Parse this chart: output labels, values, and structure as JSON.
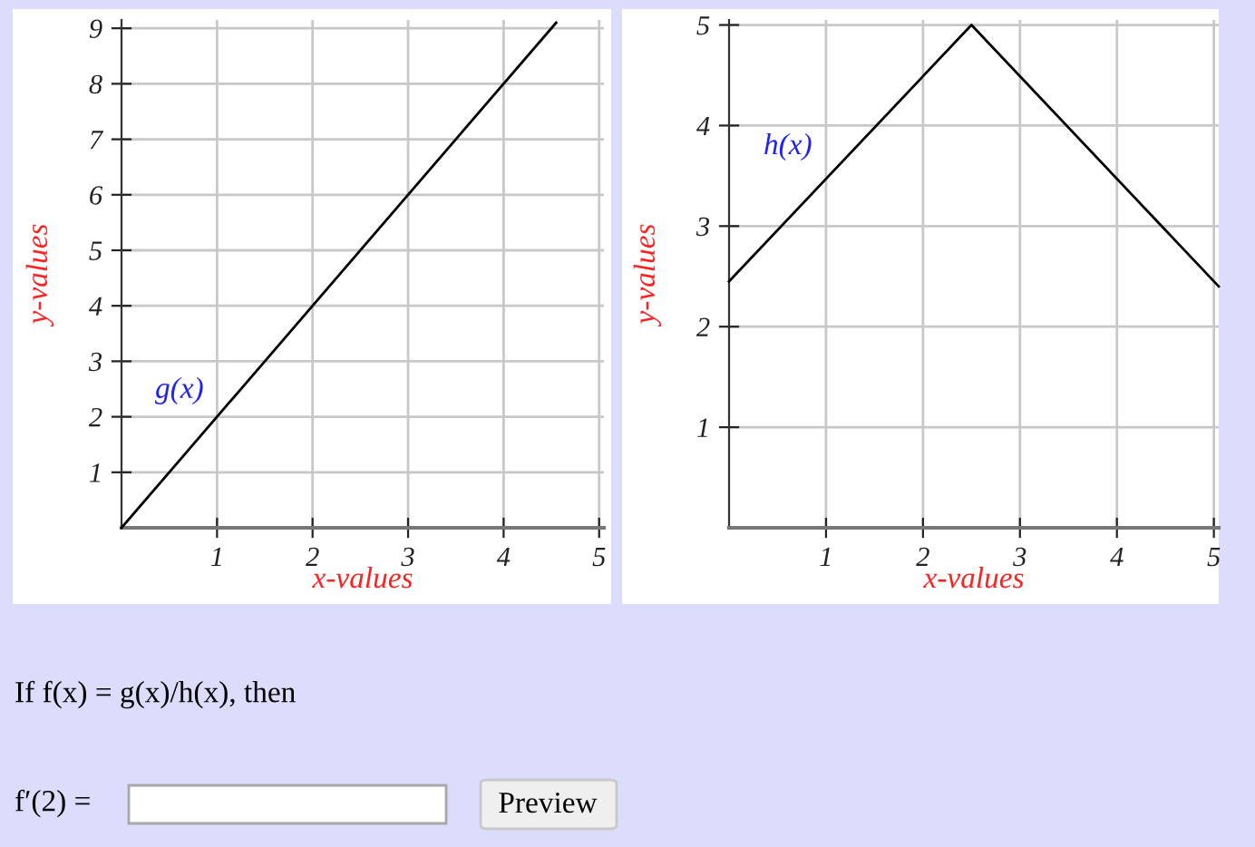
{
  "chart_data": [
    {
      "type": "line",
      "xlabel": "x-values",
      "ylabel": "y-values",
      "x": [
        0,
        4.55
      ],
      "series": [
        {
          "color": "#000000",
          "values": [
            0,
            9.1
          ]
        }
      ],
      "annotations": [
        "g(x)"
      ],
      "xlim": [
        0,
        5.05
      ],
      "ylim": [
        0,
        9.15
      ],
      "xticks": [
        1,
        2,
        3,
        4,
        5
      ],
      "yticks": [
        1,
        2,
        3,
        4,
        5,
        6,
        7,
        8,
        9
      ],
      "grid": true
    },
    {
      "type": "line",
      "xlabel": "x-values",
      "ylabel": "y-values",
      "x": [
        0,
        2.5,
        5.05
      ],
      "series": [
        {
          "color": "#000000",
          "values": [
            2.45,
            5,
            2.4
          ]
        }
      ],
      "annotations": [
        "h(x)"
      ],
      "xlim": [
        0,
        5.05
      ],
      "ylim": [
        0,
        5.05
      ],
      "xticks": [
        1,
        2,
        3,
        4,
        5
      ],
      "yticks": [
        1,
        2,
        3,
        4,
        5
      ],
      "grid": true
    },
    {
      "type": "other",
      "annotations": [
        "If f(x) = g(x)/h(x), then",
        "f′(2) =",
        "Preview"
      ]
    }
  ]
}
